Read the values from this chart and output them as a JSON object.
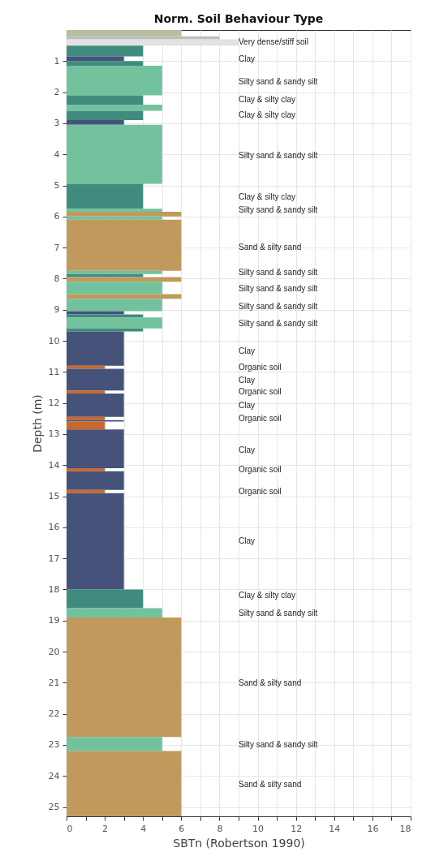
{
  "chart_data": {
    "type": "histogram",
    "orientation": "horizontal",
    "title": "Norm. Soil Behaviour Type",
    "xlabel": "SBTn (Robertson 1990)",
    "ylabel": "Depth (m)",
    "bins": [
      0,
      0.2,
      0.3,
      0.5,
      0.85,
      1.0,
      1.15,
      2.1,
      2.4,
      2.6,
      2.9,
      3.05,
      4.95,
      5.75,
      5.85,
      6.0,
      6.1,
      7.75,
      7.85,
      7.95,
      8.1,
      8.5,
      8.65,
      9.05,
      9.15,
      9.25,
      9.6,
      9.7,
      10.8,
      10.9,
      11.6,
      11.7,
      12.45,
      12.55,
      12.6,
      12.85,
      14.1,
      14.2,
      14.8,
      14.9,
      18.0,
      18.6,
      18.9,
      22.75,
      23.2,
      25.3
    ],
    "values": [
      6,
      8,
      9,
      4,
      3,
      4,
      5,
      4,
      5,
      4,
      3,
      5,
      4,
      5,
      6,
      5,
      6,
      5,
      4,
      6,
      5,
      6,
      5,
      3,
      4,
      5,
      4,
      3,
      2,
      3,
      2,
      3,
      2,
      3,
      2,
      3,
      2,
      3,
      2,
      3,
      4,
      5,
      6,
      5,
      6
    ],
    "colors": [
      "#b3bf9f",
      "#bdbdbd",
      "#e2e2e2",
      "#3f8c7e",
      "#45527a",
      "#3f8c7e",
      "#72c29e",
      "#3f8c7e",
      "#72c29e",
      "#3f8c7e",
      "#45527a",
      "#72c29e",
      "#3f8c7e",
      "#72c29e",
      "#c09a5c",
      "#72c29e",
      "#c09a5c",
      "#72c29e",
      "#3f8c7e",
      "#c09a5c",
      "#72c29e",
      "#c09a5c",
      "#72c29e",
      "#45527a",
      "#3f8c7e",
      "#72c29e",
      "#3f8c7e",
      "#45527a",
      "#c8682e",
      "#45527a",
      "#c8682e",
      "#45527a",
      "#c8682e",
      "#45527a",
      "#c8682e",
      "#45527a",
      "#c8682e",
      "#45527a",
      "#c8682e",
      "#45527a",
      "#3f8c7e",
      "#72c29e",
      "#c09a5c",
      "#72c29e",
      "#c09a5c"
    ],
    "xlim": [
      0,
      18
    ],
    "xticks": [
      0,
      {
        "value": 1,
        "label": null
      },
      2,
      {
        "value": 3,
        "label": null
      },
      4,
      {
        "value": 5,
        "label": null
      },
      6,
      {
        "value": 7,
        "label": null
      },
      8,
      {
        "value": 9,
        "label": null
      },
      10,
      {
        "value": 11,
        "label": null
      },
      12,
      {
        "value": 13,
        "label": null
      },
      14,
      {
        "value": 15,
        "label": null
      },
      16,
      {
        "value": 17,
        "label": null
      },
      18
    ],
    "ylim": [
      25.3,
      0
    ],
    "yticks": [
      1,
      2,
      3,
      4,
      5,
      6,
      7,
      8,
      9,
      10,
      11,
      12,
      13,
      14,
      15,
      16,
      17,
      18,
      19,
      20,
      21,
      22,
      23,
      24,
      25
    ],
    "grid": true,
    "annotations": [
      "Very dense/stiff soil",
      "Clay",
      "Silty sand & sandy silt",
      "Clay & silty clay",
      "Clay & silty clay",
      "Silty sand & sandy silt",
      "Clay & silty clay",
      "Silty sand & sandy silt",
      "Sand & silty sand",
      "Silty sand & sandy silt",
      "Silty sand & sandy silt",
      "Silty sand & sandy silt",
      "Silty sand & sandy silt",
      "Clay",
      "Organic soil",
      "Clay",
      "Organic soil",
      "Clay",
      "Organic soil",
      "Clay",
      "Organic soil",
      "Organic soil",
      "Clay",
      "Clay & silty clay",
      "Silty sand & sandy silt",
      "Sand & silty sand",
      "Silty sand & sandy silt",
      "Sand & silty sand"
    ]
  }
}
